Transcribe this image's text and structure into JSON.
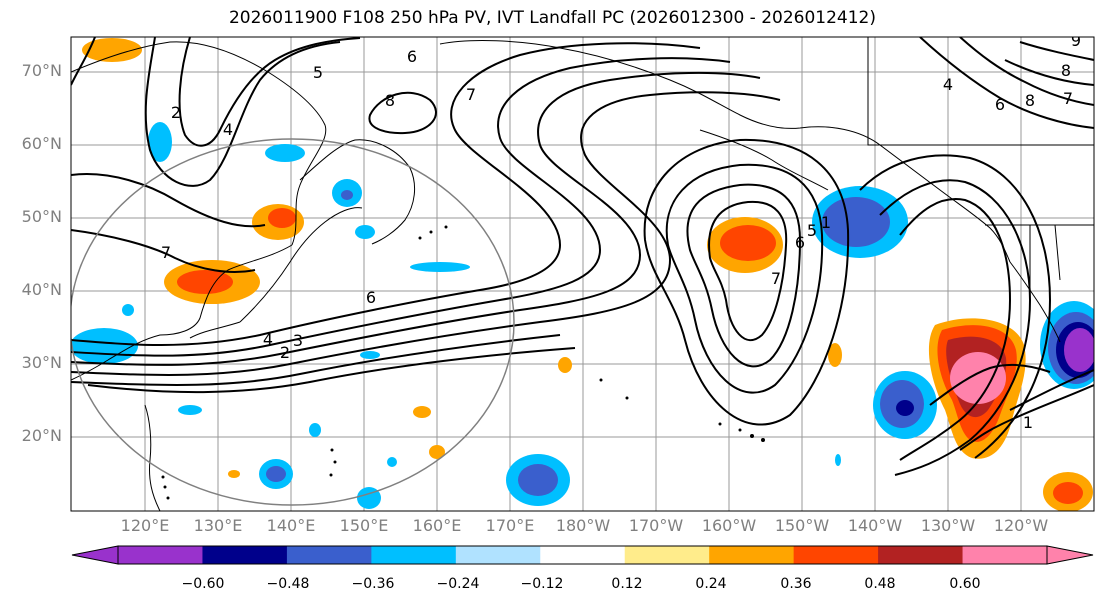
{
  "title": "2026011900 F108 250 hPa PV, IVT Landfall PC (2026012300 - 2026012412)",
  "lat_labels": [
    "70°N",
    "60°N",
    "50°N",
    "40°N",
    "30°N",
    "20°N"
  ],
  "lon_labels": [
    "120°E",
    "130°E",
    "140°E",
    "150°E",
    "160°E",
    "170°E",
    "180°W",
    "170°W",
    "160°W",
    "150°W",
    "140°W",
    "130°W",
    "120°W"
  ],
  "colorbar": {
    "colors": [
      "#9932cc",
      "#00008b",
      "#3a5fcd",
      "#00bfff",
      "#b0e2ff",
      "#ffffff",
      "#ffec8b",
      "#ffa500",
      "#ff4500",
      "#b22222",
      "#ff82ab"
    ],
    "tick_labels": [
      "−0.60",
      "−0.48",
      "−0.36",
      "−0.24",
      "−0.12",
      "0.12",
      "0.24",
      "0.36",
      "0.48",
      "0.60"
    ]
  },
  "contour_labels": [
    "5",
    "6",
    "8",
    "7",
    "4",
    "7",
    "6",
    "3",
    "2",
    "4",
    "5",
    "6",
    "1",
    "7",
    "2",
    "4",
    "1",
    "7",
    "8",
    "9",
    "6",
    "8"
  ]
}
